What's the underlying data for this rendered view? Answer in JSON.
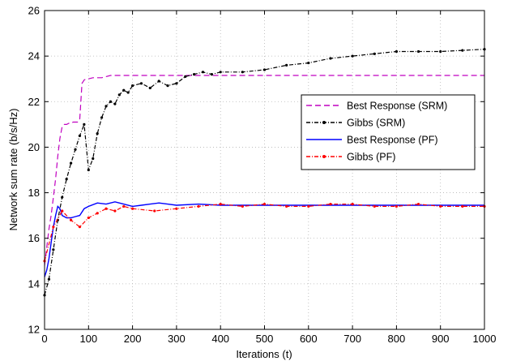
{
  "chart_data": {
    "type": "line",
    "xlabel": "Iterations (t)",
    "ylabel": "Network sum rate (b/s/Hz)",
    "xlim": [
      0,
      1000
    ],
    "ylim": [
      12,
      26
    ],
    "xticks": [
      0,
      100,
      200,
      300,
      400,
      500,
      600,
      700,
      800,
      900,
      1000
    ],
    "yticks": [
      12,
      14,
      16,
      18,
      20,
      22,
      24,
      26
    ],
    "grid": true,
    "legend_position": "right",
    "series": [
      {
        "name": "Best Response (SRM)",
        "color": "#c000c0",
        "style": "dashed",
        "x": [
          0,
          5,
          10,
          15,
          20,
          25,
          30,
          35,
          40,
          45,
          50,
          55,
          60,
          65,
          70,
          75,
          80,
          85,
          90,
          95,
          100,
          110,
          120,
          130,
          140,
          150,
          200,
          300,
          400,
          500,
          600,
          700,
          800,
          900,
          1000
        ],
        "y": [
          14.8,
          15.6,
          16.4,
          17.0,
          17.8,
          18.6,
          19.6,
          20.4,
          20.9,
          21.0,
          21.0,
          21.05,
          21.05,
          21.1,
          21.1,
          21.1,
          21.2,
          22.8,
          22.95,
          23.0,
          23.0,
          23.05,
          23.05,
          23.05,
          23.1,
          23.15,
          23.15,
          23.15,
          23.15,
          23.15,
          23.15,
          23.15,
          23.15,
          23.15,
          23.15
        ]
      },
      {
        "name": "Gibbs (SRM)",
        "color": "#000000",
        "style": "dashed-dot-marker",
        "x": [
          0,
          10,
          20,
          30,
          40,
          50,
          60,
          70,
          80,
          90,
          100,
          110,
          120,
          130,
          140,
          150,
          160,
          170,
          180,
          190,
          200,
          220,
          240,
          260,
          280,
          300,
          320,
          340,
          360,
          380,
          400,
          450,
          500,
          550,
          600,
          650,
          700,
          750,
          800,
          850,
          900,
          950,
          1000
        ],
        "y": [
          13.5,
          14.2,
          15.5,
          16.8,
          17.8,
          18.6,
          19.3,
          19.9,
          20.5,
          21.0,
          19.0,
          19.5,
          20.6,
          21.3,
          21.8,
          22.0,
          21.9,
          22.3,
          22.5,
          22.4,
          22.7,
          22.8,
          22.6,
          22.9,
          22.7,
          22.8,
          23.1,
          23.2,
          23.3,
          23.2,
          23.3,
          23.3,
          23.4,
          23.6,
          23.7,
          23.9,
          24.0,
          24.1,
          24.2,
          24.2,
          24.2,
          24.25,
          24.3
        ]
      },
      {
        "name": "Best Response (PF)",
        "color": "#0000ff",
        "style": "solid",
        "x": [
          0,
          5,
          10,
          15,
          20,
          25,
          30,
          35,
          40,
          50,
          60,
          70,
          80,
          90,
          100,
          120,
          140,
          160,
          180,
          200,
          220,
          240,
          260,
          280,
          300,
          350,
          400,
          500,
          600,
          700,
          800,
          900,
          1000
        ],
        "y": [
          14.3,
          14.6,
          15.1,
          15.8,
          16.5,
          17.0,
          17.4,
          17.3,
          17.0,
          16.9,
          16.9,
          16.95,
          17.0,
          17.3,
          17.4,
          17.55,
          17.5,
          17.6,
          17.5,
          17.4,
          17.45,
          17.5,
          17.55,
          17.5,
          17.45,
          17.5,
          17.45,
          17.45,
          17.45,
          17.45,
          17.45,
          17.45,
          17.45
        ]
      },
      {
        "name": "Gibbs (PF)",
        "color": "#ff0000",
        "style": "dashed-dot-marker",
        "x": [
          0,
          20,
          40,
          60,
          80,
          100,
          120,
          140,
          160,
          180,
          200,
          250,
          300,
          350,
          400,
          450,
          500,
          550,
          600,
          650,
          700,
          750,
          800,
          850,
          900,
          950,
          1000
        ],
        "y": [
          15.0,
          16.5,
          17.2,
          16.8,
          16.5,
          16.9,
          17.1,
          17.3,
          17.2,
          17.4,
          17.3,
          17.2,
          17.3,
          17.4,
          17.5,
          17.4,
          17.5,
          17.4,
          17.4,
          17.5,
          17.5,
          17.4,
          17.4,
          17.5,
          17.4,
          17.4,
          17.4
        ]
      }
    ]
  }
}
